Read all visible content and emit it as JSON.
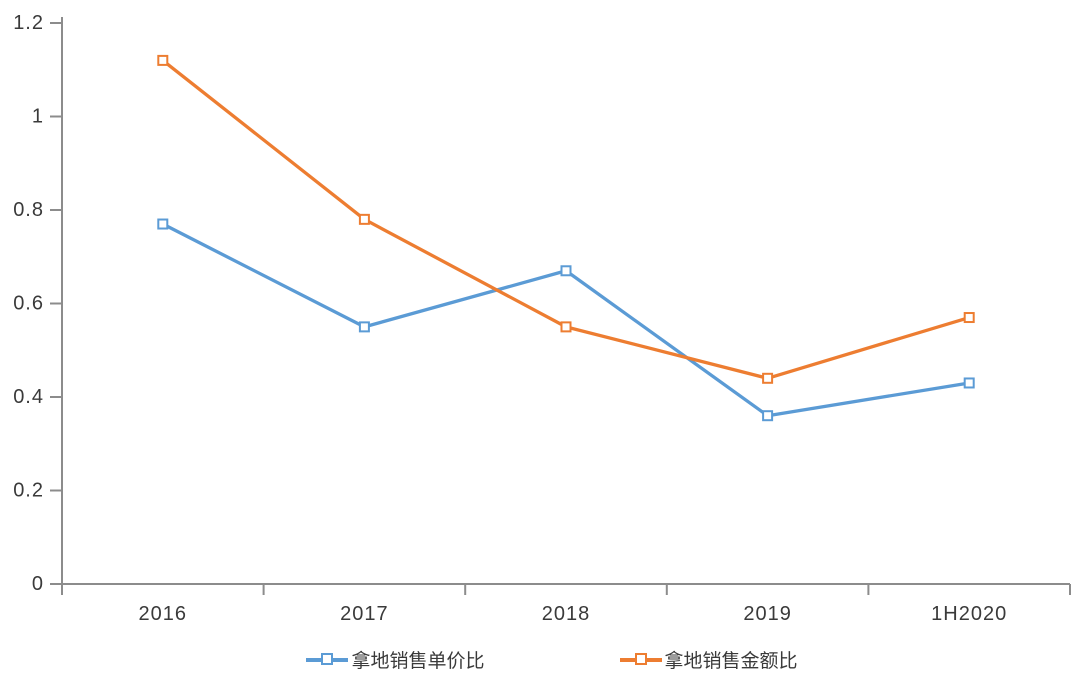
{
  "chart_data": {
    "type": "line",
    "title": "",
    "xlabel": "",
    "ylabel": "",
    "categories": [
      "2016",
      "2017",
      "2018",
      "2019",
      "1H2020"
    ],
    "series": [
      {
        "name": "拿地销售单价比",
        "color": "#5B9BD5",
        "values": [
          0.77,
          0.55,
          0.67,
          0.36,
          0.43
        ]
      },
      {
        "name": "拿地销售金额比",
        "color": "#ED7D31",
        "values": [
          1.12,
          0.78,
          0.55,
          0.44,
          0.57
        ]
      }
    ],
    "ylim": [
      0,
      1.2
    ],
    "y_ticks": [
      0,
      0.2,
      0.4,
      0.6,
      0.8,
      1,
      1.2
    ],
    "y_tick_labels": [
      "0",
      "0.2",
      "0.4",
      "0.6",
      "0.8",
      "1",
      "1.2"
    ],
    "grid": false,
    "marker": "open-square",
    "legend_position": "bottom",
    "colors": {
      "axis_line": "#8C8C8C",
      "tick_label": "#3A3A3A",
      "background": "#FFFFFF",
      "marker_fill": "#FFFFFF"
    }
  }
}
